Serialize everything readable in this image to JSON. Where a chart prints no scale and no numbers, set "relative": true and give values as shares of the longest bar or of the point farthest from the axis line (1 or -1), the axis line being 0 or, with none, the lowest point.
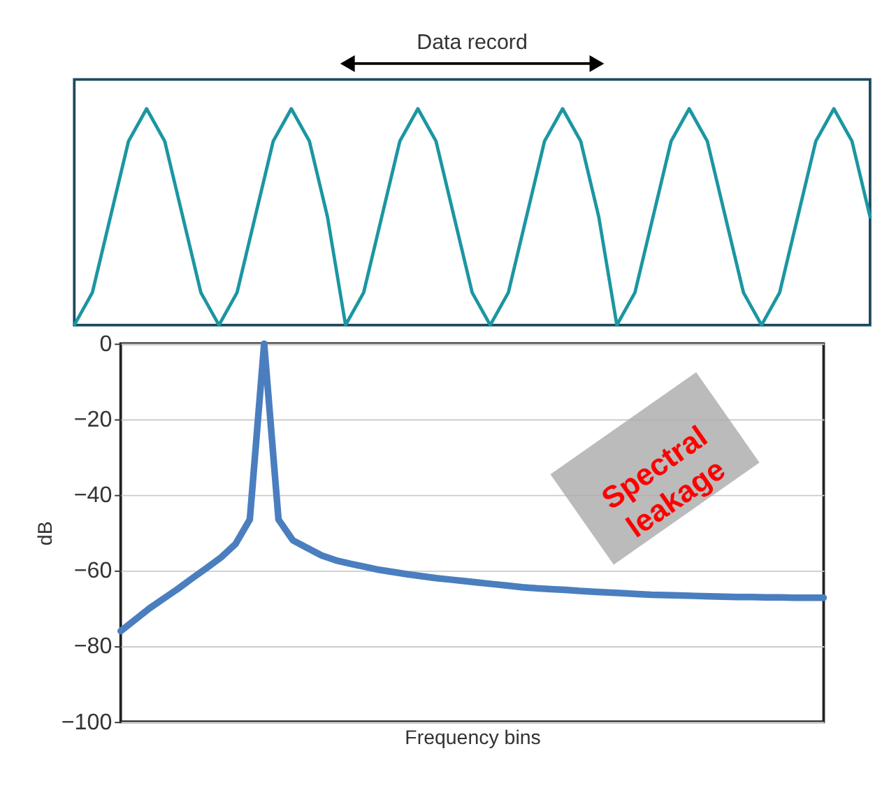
{
  "chart_data": [
    {
      "type": "line",
      "relative": true,
      "tick_labels": false,
      "grid": false,
      "categories": [
        null,
        null,
        null,
        null,
        null,
        null,
        null,
        null,
        null,
        null,
        null,
        null,
        null,
        null,
        null,
        null,
        null,
        null,
        null,
        null,
        null,
        null,
        null,
        null,
        null,
        null,
        null,
        null,
        null,
        null,
        null,
        null,
        null,
        null,
        null,
        null,
        null,
        null,
        null,
        null,
        null,
        null,
        null,
        null,
        null
      ],
      "series": [
        {
          "color": "#1b96a2",
          "line_style": "solid",
          "values": [
            0,
            0.15,
            0.5,
            0.85,
            1,
            0.85,
            0.5,
            0.15,
            0,
            0.15,
            0.5,
            0.85,
            1,
            0.85,
            0.5,
            0,
            0.15,
            0.5,
            0.85,
            1,
            0.85,
            0.5,
            0.15,
            0,
            0.15,
            0.5,
            0.85,
            1,
            0.85,
            0.5,
            0,
            0.15,
            0.5,
            0.85,
            1,
            0.85,
            0.5,
            0.15,
            0,
            0.15,
            0.5,
            0.85,
            1,
            0.85,
            0.5
          ]
        }
      ],
      "annotations": [
        "Data record"
      ]
    },
    {
      "type": "line",
      "xlabel": "Frequency bins",
      "ylabel": "dB",
      "ylim": [
        -100,
        0
      ],
      "yticks": [
        0,
        -20,
        -40,
        -60,
        -80,
        -100
      ],
      "tick_labels": "y",
      "grid": "y",
      "categories": [
        null,
        null,
        null,
        null,
        null,
        null,
        null,
        null,
        null,
        null,
        null,
        null,
        null,
        null,
        null,
        null,
        null,
        null,
        null,
        null,
        null,
        null,
        null,
        null,
        null,
        null,
        null,
        null,
        null,
        null,
        null,
        null,
        null,
        null,
        null,
        null,
        null,
        null,
        null,
        null,
        null,
        null,
        null,
        null,
        null,
        null,
        null,
        null,
        null,
        null
      ],
      "series": [
        {
          "color": "#4a7ebf",
          "line_style": "solid",
          "values": [
            -76,
            -73,
            -70,
            -67.4,
            -64.8,
            -62,
            -59.3,
            -56.5,
            -53,
            -46.5,
            0,
            -46.5,
            -52,
            -54,
            -56,
            -57.3,
            -58.2,
            -59,
            -59.8,
            -60.4,
            -61,
            -61.5,
            -62,
            -62.4,
            -62.8,
            -63.2,
            -63.6,
            -64,
            -64.4,
            -64.7,
            -64.9,
            -65.1,
            -65.4,
            -65.6,
            -65.8,
            -66,
            -66.2,
            -66.4,
            -66.5,
            -66.6,
            -66.7,
            -66.8,
            -66.9,
            -67,
            -67,
            -67.1,
            -67.1,
            -67.2,
            -67.2,
            -67.2
          ]
        }
      ],
      "annotations": [
        "Spectral\nleakage"
      ]
    }
  ]
}
